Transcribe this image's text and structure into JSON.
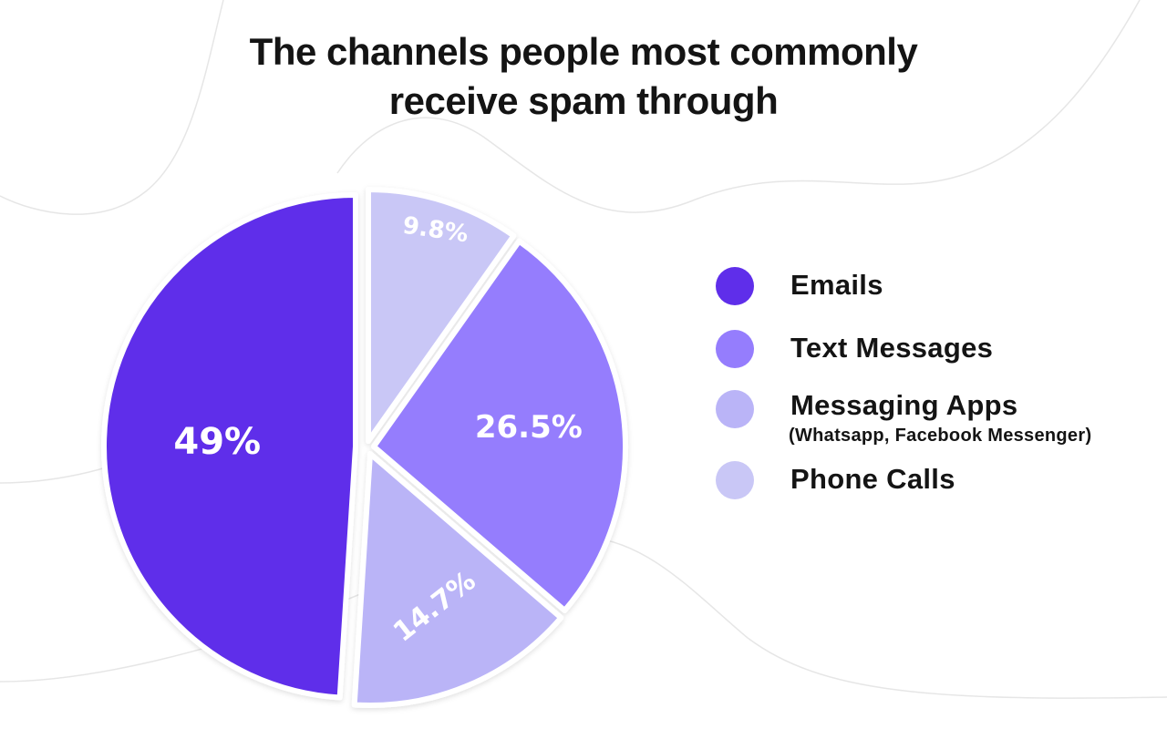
{
  "title": {
    "line1": "The channels people most commonly",
    "line2": "receive spam through"
  },
  "legend": {
    "items": [
      {
        "label": "Emails",
        "color": "#5F2EEA"
      },
      {
        "label": "Text Messages",
        "color": "#957DFD"
      },
      {
        "label": "Messaging Apps",
        "sublabel": "(Whatsapp, Facebook Messenger)",
        "color": "#BAB4F7"
      },
      {
        "label": "Phone Calls",
        "color": "#C9C7F6"
      }
    ]
  },
  "slices": [
    {
      "name": "Emails",
      "value_label": "49%",
      "color": "#5F2EEA"
    },
    {
      "name": "Text Messages",
      "value_label": "26.5%",
      "color": "#957DFD"
    },
    {
      "name": "Messaging Apps",
      "value_label": "14.7%",
      "color": "#BAB4F7"
    },
    {
      "name": "Phone Calls",
      "value_label": "9.8%",
      "color": "#C9C7F6"
    }
  ],
  "chart_data": {
    "type": "pie",
    "title": "The channels people most commonly receive spam through",
    "categories": [
      "Emails",
      "Text Messages",
      "Messaging Apps (Whatsapp, Facebook Messenger)",
      "Phone Calls"
    ],
    "values": [
      49,
      26.5,
      14.7,
      9.8
    ],
    "unit": "%",
    "colors": [
      "#5F2EEA",
      "#957DFD",
      "#BAB4F7",
      "#C9C7F6"
    ],
    "data_labels": [
      "49%",
      "26.5%",
      "14.7%",
      "9.8%"
    ],
    "legend_position": "right",
    "exploded": true
  }
}
